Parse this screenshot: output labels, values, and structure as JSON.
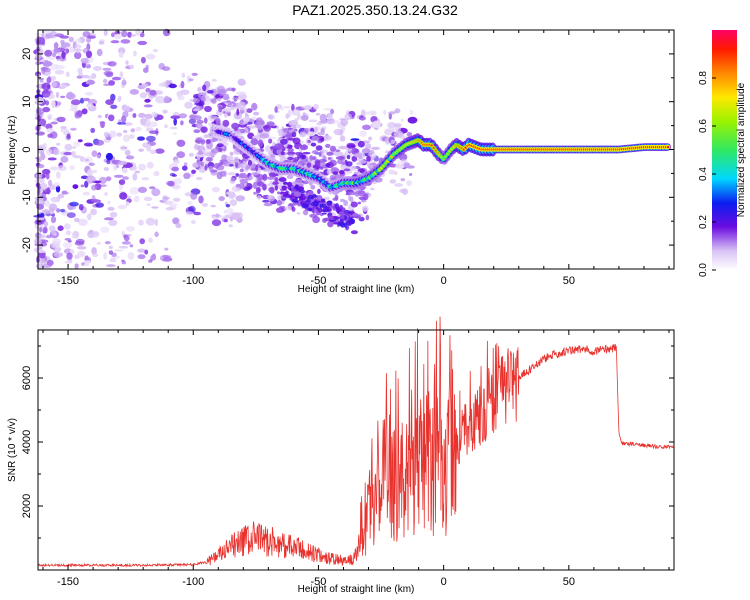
{
  "title": "PAZ1.2025.350.13.24.G32",
  "chart_data": [
    {
      "type": "heatmap",
      "name": "spectrogram",
      "xlabel": "Height of straight line (km)",
      "ylabel": "Frequency (Hz)",
      "xlim": [
        -162,
        92
      ],
      "ylim": [
        -25,
        25
      ],
      "xticks": [
        -150,
        -100,
        -50,
        0,
        50
      ],
      "yticks": [
        -20,
        -10,
        0,
        10,
        20
      ],
      "colorbar": {
        "label": "Normalized spectral amplitude",
        "range": [
          0,
          1
        ],
        "ticks": [
          "0.0",
          "0.2",
          "0.4",
          "0.6",
          "0.8"
        ],
        "tick_values": [
          0,
          0.2,
          0.4,
          0.6,
          0.8
        ]
      },
      "ridge": {
        "x": [
          -92,
          -85,
          -80,
          -75,
          -70,
          -65,
          -60,
          -55,
          -50,
          -45,
          -40,
          -35,
          -30,
          -25,
          -20,
          -15,
          -10,
          -8,
          -5,
          -2,
          0,
          3,
          5,
          8,
          10,
          15,
          20,
          30,
          40,
          50,
          60,
          70,
          80,
          90
        ],
        "freq": [
          4,
          3,
          1,
          -1,
          -3,
          -4,
          -4,
          -5,
          -6,
          -8,
          -7,
          -7,
          -6,
          -4,
          -1,
          1,
          2,
          1,
          1,
          -1,
          -2,
          0,
          1,
          0,
          1,
          0,
          0,
          0,
          0,
          0,
          0,
          0,
          0.5,
          0.5
        ],
        "amplitude": [
          0.25,
          0.3,
          0.3,
          0.35,
          0.4,
          0.45,
          0.45,
          0.45,
          0.4,
          0.4,
          0.5,
          0.55,
          0.55,
          0.6,
          0.65,
          0.7,
          0.8,
          0.9,
          0.9,
          0.8,
          0.6,
          0.7,
          0.8,
          0.9,
          0.95,
          0.95,
          0.95,
          0.95,
          0.95,
          0.95,
          0.95,
          0.95,
          0.95,
          0.95
        ]
      }
    },
    {
      "type": "line",
      "name": "snr",
      "xlabel": "Height of straight line (km)",
      "ylabel": "SNR (10 * v/v)",
      "xlim": [
        -162,
        92
      ],
      "ylim": [
        0,
        7500
      ],
      "xticks": [
        -150,
        -100,
        -50,
        0,
        50
      ],
      "yticks": [
        2000,
        4000,
        6000
      ],
      "color": "#e8322e",
      "series": [
        {
          "name": "SNR",
          "x": [
            -162,
            -140,
            -120,
            -100,
            -95,
            -90,
            -85,
            -80,
            -75,
            -70,
            -65,
            -60,
            -55,
            -50,
            -45,
            -40,
            -36,
            -33,
            -30,
            -28,
            -25,
            -22,
            -20,
            -15,
            -10,
            -5,
            0,
            5,
            10,
            15,
            20,
            25,
            30,
            35,
            40,
            45,
            50,
            55,
            60,
            65,
            69,
            70,
            71,
            75,
            80,
            85,
            90
          ],
          "y": [
            150,
            150,
            150,
            170,
            250,
            450,
            700,
            900,
            1000,
            900,
            800,
            700,
            600,
            450,
            350,
            300,
            320,
            900,
            1700,
            2300,
            2700,
            3000,
            2900,
            3000,
            3200,
            3400,
            3500,
            3800,
            4500,
            4900,
            5400,
            5700,
            6000,
            6300,
            6600,
            6750,
            6850,
            6900,
            6850,
            6900,
            6950,
            4300,
            3950,
            3950,
            3900,
            3850,
            3850
          ]
        }
      ]
    }
  ]
}
